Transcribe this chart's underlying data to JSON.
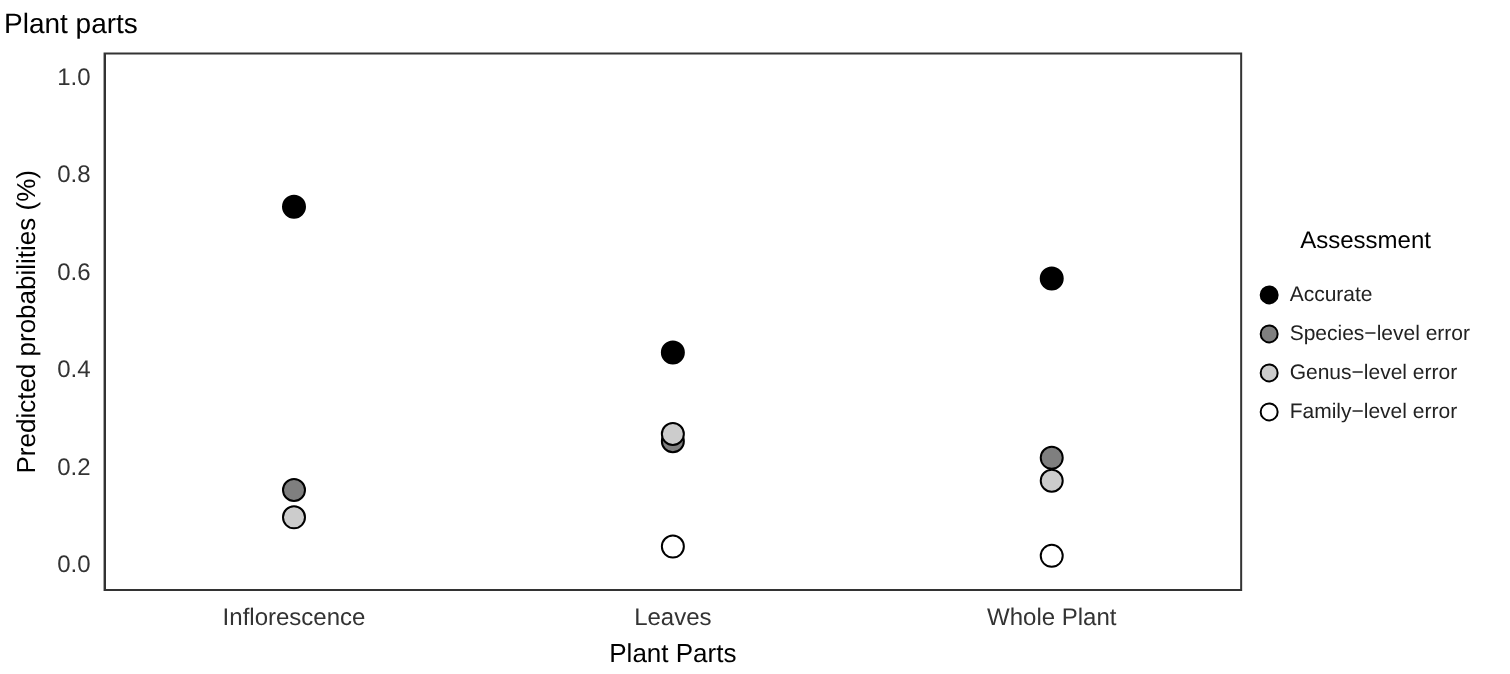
{
  "chart_data": {
    "type": "scatter",
    "title": "Plant parts",
    "xlabel": "Plant Parts",
    "ylabel": "Predicted probabilities (%)",
    "legend_title": "Assessment",
    "legend": "right",
    "grid": false,
    "marker": "circle",
    "categories": [
      "Inflorescence",
      "Leaves",
      "Whole Plant"
    ],
    "ylim": [
      -0.05,
      1.05
    ],
    "yticks": [
      {
        "value": 0,
        "label": "0.0"
      },
      {
        "value": 0.2,
        "label": "0.2"
      },
      {
        "value": 0.4,
        "label": "0.4"
      },
      {
        "value": 0.6,
        "label": "0.6"
      },
      {
        "value": 0.8,
        "label": "0.8"
      },
      {
        "value": 1,
        "label": "1.0"
      }
    ],
    "series": [
      {
        "name": "Accurate",
        "color": "#000000",
        "values": [
          0.736,
          0.437,
          0.589
        ]
      },
      {
        "name": "Species−level error",
        "color": "#7f7f7f",
        "values": [
          0.155,
          0.255,
          0.221
        ]
      },
      {
        "name": "Genus−level error",
        "color": "#cccccc",
        "values": [
          0.099,
          0.27,
          0.174
        ]
      },
      {
        "name": "Family−level error",
        "color": "#ffffff",
        "values": [
          null,
          0.039,
          0.02
        ]
      }
    ]
  }
}
